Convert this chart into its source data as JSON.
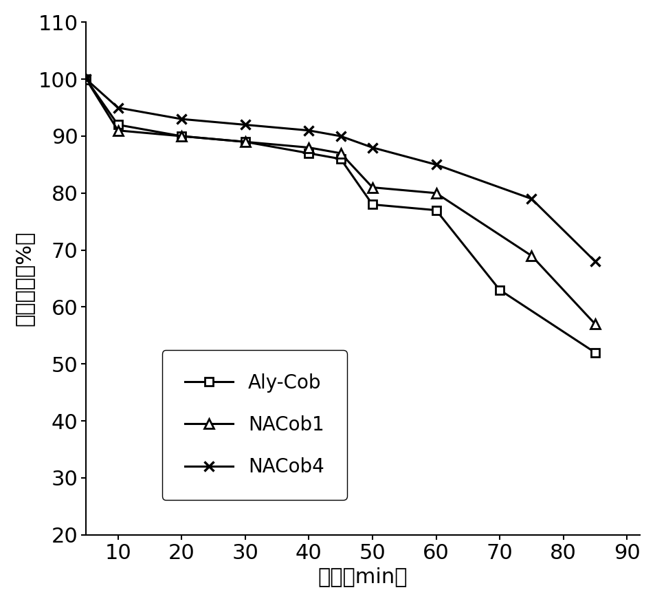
{
  "x": [
    5,
    10,
    20,
    30,
    40,
    45,
    50,
    60,
    70,
    75,
    85
  ],
  "Aly_Cob": [
    100,
    92,
    90,
    89,
    87,
    86,
    78,
    77,
    63,
    null,
    52
  ],
  "NACob1": [
    100,
    91,
    90,
    89,
    88,
    87,
    81,
    80,
    null,
    69,
    57
  ],
  "NACob4": [
    100,
    95,
    93,
    92,
    91,
    90,
    88,
    85,
    null,
    79,
    68
  ],
  "ylabel": "相对酶活（%）",
  "xlabel": "时间（min）",
  "ylim": [
    20,
    110
  ],
  "yticks": [
    20,
    30,
    40,
    50,
    60,
    70,
    80,
    90,
    100,
    110
  ],
  "xticks": [
    10,
    20,
    30,
    40,
    50,
    60,
    70,
    80,
    90
  ],
  "legend_labels": [
    "Aly-Cob",
    "NACob1",
    "NACob4"
  ],
  "line_color": "#000000",
  "label_fontsize": 22,
  "tick_fontsize": 22,
  "legend_fontsize": 20
}
